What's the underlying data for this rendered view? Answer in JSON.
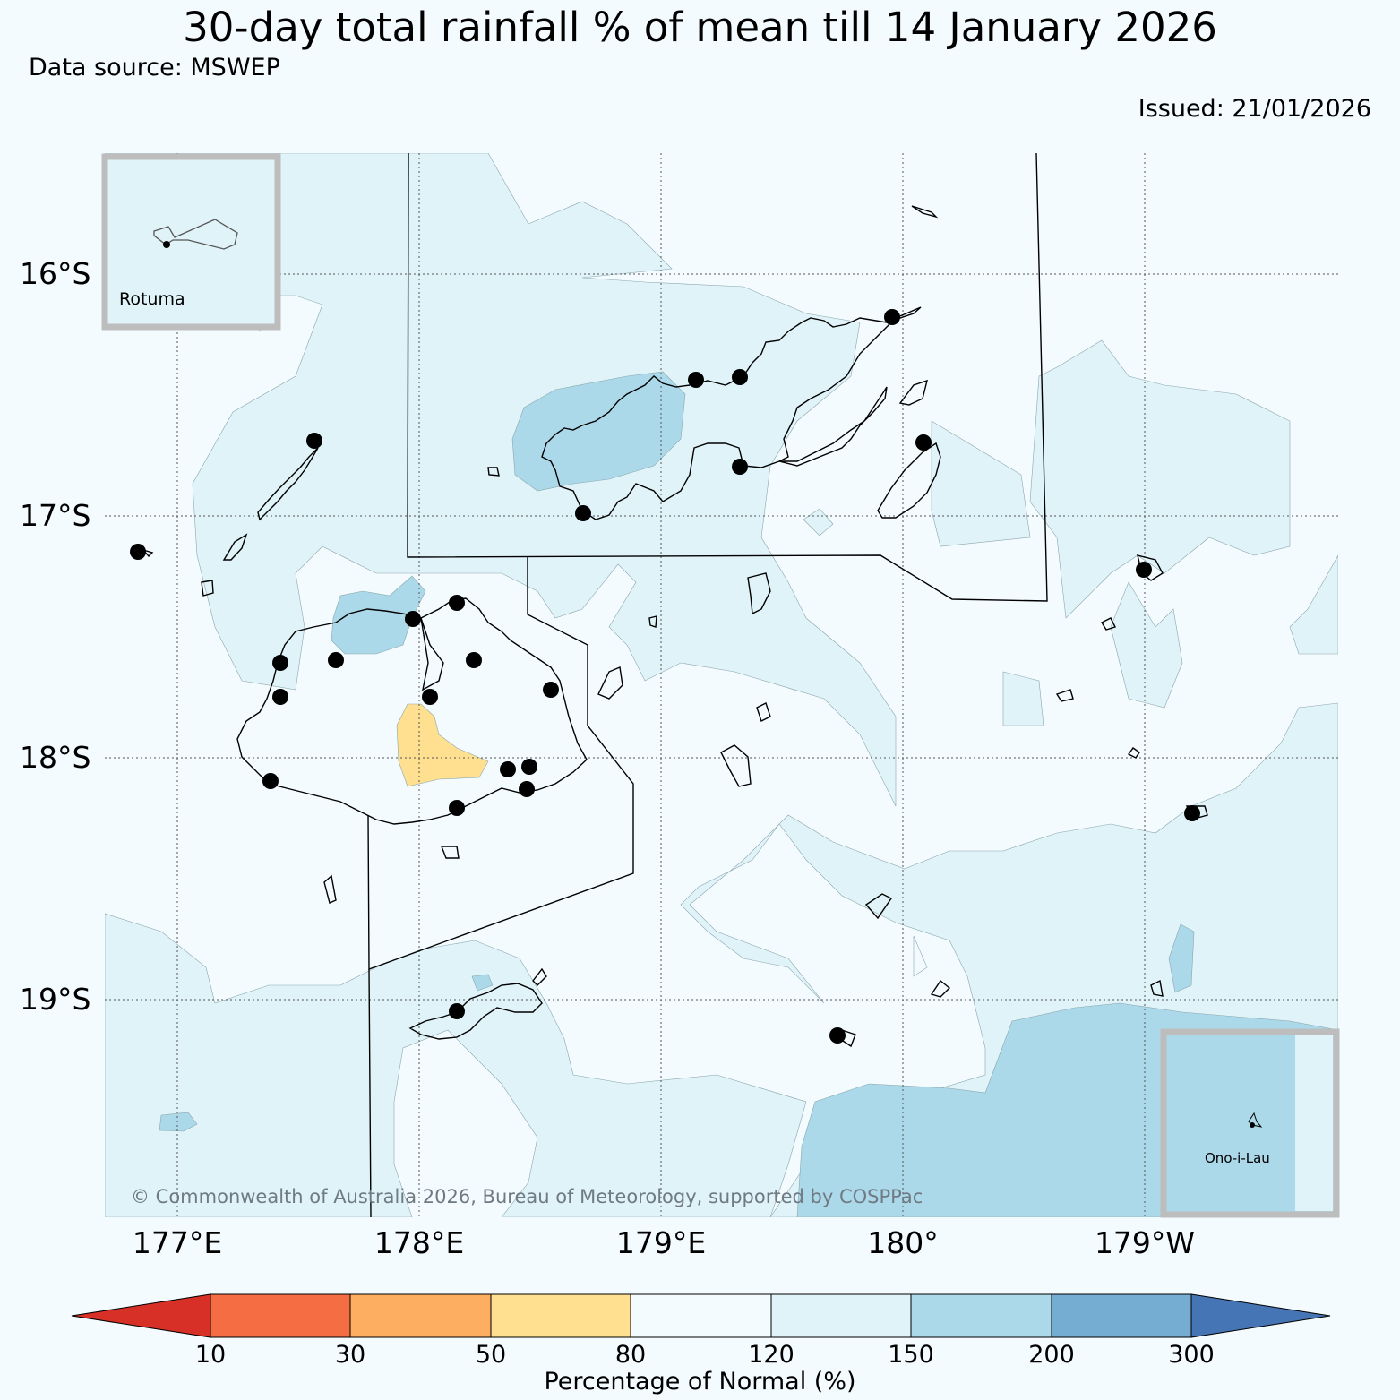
{
  "title": "30-day total rainfall % of mean till 14 January 2026",
  "data_source": "Data source: MSWEP",
  "issued": "Issued: 21/01/2026",
  "latitude_labels": [
    "16°S",
    "17°S",
    "18°S",
    "19°S"
  ],
  "longitude_labels": [
    "177°E",
    "178°E",
    "179°E",
    "180°",
    "179°W"
  ],
  "insets": [
    {
      "name": "Rotuma",
      "label": "Rotuma"
    },
    {
      "name": "Ono-i-Lau",
      "label": "Ono-i-Lau"
    }
  ],
  "copyright": "© Commonwealth of Australia 2026, Bureau of Meteorology, supported by COSPPac",
  "colorbar": {
    "title": "Percentage of Normal (%)",
    "ticks": [
      "10",
      "30",
      "50",
      "80",
      "120",
      "150",
      "200",
      "300"
    ],
    "colors": [
      "#d73027",
      "#f46d43",
      "#fdae61",
      "#fee090",
      "#f3fbfe",
      "#e0f3f8",
      "#abd9e9",
      "#74add1",
      "#4575b4"
    ]
  },
  "colors": {
    "background": "#f3fbfe",
    "band_120_150": "#e0f3f8",
    "band_150_200": "#abd9e9",
    "band_50_80": "#fee090",
    "inset_border": "#bdbdbd"
  }
}
